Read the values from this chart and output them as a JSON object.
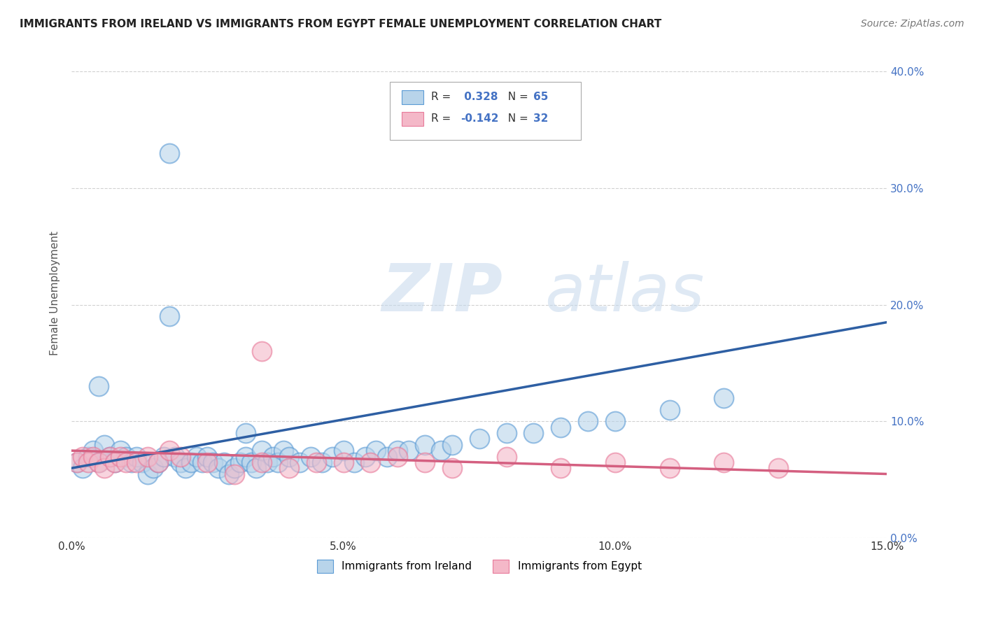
{
  "title": "IMMIGRANTS FROM IRELAND VS IMMIGRANTS FROM EGYPT FEMALE UNEMPLOYMENT CORRELATION CHART",
  "source": "Source: ZipAtlas.com",
  "ylabel": "Female Unemployment",
  "xlim": [
    0.0,
    0.15
  ],
  "ylim": [
    0.0,
    0.42
  ],
  "yticks": [
    0.0,
    0.1,
    0.2,
    0.3,
    0.4
  ],
  "xticks": [
    0.0,
    0.05,
    0.1,
    0.15
  ],
  "xtick_labels": [
    "0.0%",
    "",
    "5.0%",
    "",
    "10.0%",
    "",
    "15.0%"
  ],
  "xticks_full": [
    0.0,
    0.025,
    0.05,
    0.075,
    0.1,
    0.125,
    0.15
  ],
  "ytick_labels_right": [
    "0.0%",
    "10.0%",
    "20.0%",
    "30.0%",
    "40.0%"
  ],
  "ireland_color": "#b8d4ea",
  "ireland_edge": "#5b9bd5",
  "egypt_color": "#f4b8c8",
  "egypt_edge": "#e87a9a",
  "ireland_R": 0.328,
  "ireland_N": 65,
  "egypt_R": -0.142,
  "egypt_N": 32,
  "ireland_line_color": "#2e5fa3",
  "egypt_line_color": "#d45f80",
  "watermark_zip": "ZIP",
  "watermark_atlas": "atlas",
  "background_color": "#ffffff",
  "grid_color": "#cccccc",
  "title_color": "#222222",
  "source_color": "#777777",
  "legend_R_color": "#4472c4",
  "legend_N_color": "#4472c4",
  "ireland_line_x0": 0.0,
  "ireland_line_x1": 0.15,
  "ireland_line_y0": 0.06,
  "ireland_line_y1": 0.185,
  "egypt_line_x0": 0.0,
  "egypt_line_x1": 0.15,
  "egypt_line_y0": 0.075,
  "egypt_line_y1": 0.055,
  "ireland_scatter_x": [
    0.001,
    0.002,
    0.003,
    0.004,
    0.005,
    0.006,
    0.007,
    0.008,
    0.009,
    0.01,
    0.011,
    0.012,
    0.013,
    0.014,
    0.015,
    0.016,
    0.017,
    0.018,
    0.019,
    0.02,
    0.021,
    0.022,
    0.023,
    0.024,
    0.025,
    0.026,
    0.027,
    0.028,
    0.029,
    0.03,
    0.031,
    0.032,
    0.033,
    0.034,
    0.035,
    0.036,
    0.037,
    0.038,
    0.039,
    0.04,
    0.042,
    0.044,
    0.046,
    0.048,
    0.05,
    0.052,
    0.054,
    0.056,
    0.058,
    0.06,
    0.062,
    0.065,
    0.068,
    0.07,
    0.075,
    0.08,
    0.085,
    0.09,
    0.095,
    0.1,
    0.11,
    0.12,
    0.032,
    0.018,
    0.005
  ],
  "ireland_scatter_y": [
    0.065,
    0.06,
    0.07,
    0.075,
    0.065,
    0.08,
    0.07,
    0.065,
    0.075,
    0.07,
    0.065,
    0.07,
    0.065,
    0.055,
    0.06,
    0.065,
    0.07,
    0.33,
    0.07,
    0.065,
    0.06,
    0.065,
    0.07,
    0.065,
    0.07,
    0.065,
    0.06,
    0.065,
    0.055,
    0.06,
    0.065,
    0.07,
    0.065,
    0.06,
    0.075,
    0.065,
    0.07,
    0.065,
    0.075,
    0.07,
    0.065,
    0.07,
    0.065,
    0.07,
    0.075,
    0.065,
    0.07,
    0.075,
    0.07,
    0.075,
    0.075,
    0.08,
    0.075,
    0.08,
    0.085,
    0.09,
    0.09,
    0.095,
    0.1,
    0.1,
    0.11,
    0.12,
    0.09,
    0.19,
    0.13
  ],
  "egypt_scatter_x": [
    0.001,
    0.002,
    0.003,
    0.004,
    0.005,
    0.006,
    0.007,
    0.008,
    0.009,
    0.01,
    0.012,
    0.014,
    0.016,
    0.018,
    0.02,
    0.025,
    0.03,
    0.035,
    0.04,
    0.045,
    0.05,
    0.055,
    0.06,
    0.065,
    0.07,
    0.08,
    0.09,
    0.1,
    0.11,
    0.12,
    0.13,
    0.035
  ],
  "egypt_scatter_y": [
    0.065,
    0.07,
    0.065,
    0.07,
    0.065,
    0.06,
    0.07,
    0.065,
    0.07,
    0.065,
    0.065,
    0.07,
    0.065,
    0.075,
    0.07,
    0.065,
    0.055,
    0.065,
    0.06,
    0.065,
    0.065,
    0.065,
    0.07,
    0.065,
    0.06,
    0.07,
    0.06,
    0.065,
    0.06,
    0.065,
    0.06,
    0.16
  ]
}
